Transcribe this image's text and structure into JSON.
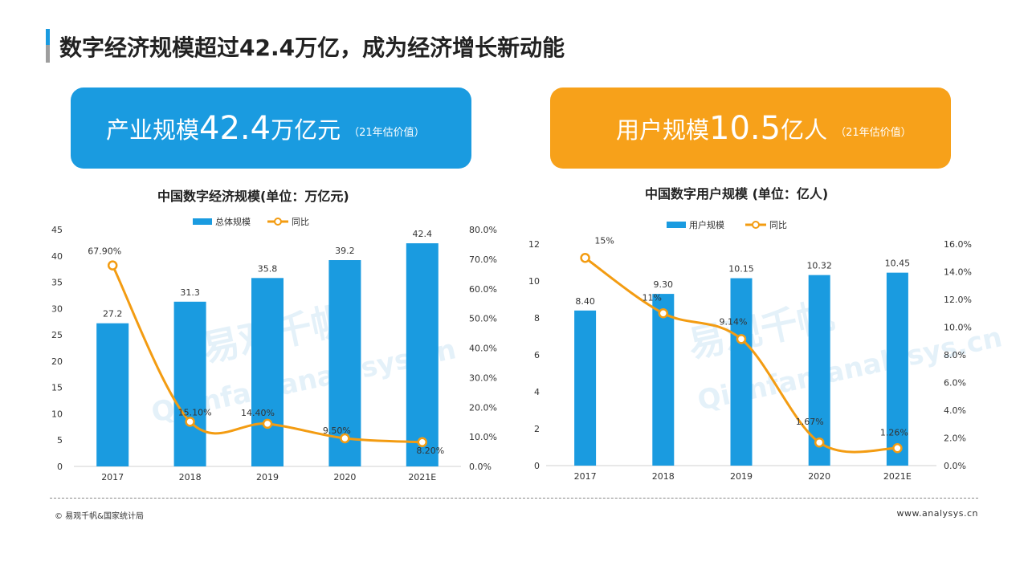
{
  "page": {
    "title": "数字经济规模超过42.4万亿，成为经济增长新动能"
  },
  "banner_left": {
    "label": "产业规模",
    "value": "42.4",
    "unit": "万亿元",
    "note": "（21年估价值）",
    "color": "#1a9be0"
  },
  "banner_right": {
    "label": "用户规模",
    "value": "10.5",
    "unit": "亿人",
    "note": "（21年估价值）",
    "color": "#f7a11a"
  },
  "footer": {
    "source": "© 易观千帆&国家统计局",
    "site": "www.analysys.cn"
  },
  "watermark": {
    "cn": "易观千帆",
    "en": "Qianfan.analysys.cn"
  },
  "chart_data": [
    {
      "type": "bar+line",
      "title": "中国数字经济规模(单位：万亿元)",
      "categories": [
        "2017",
        "2018",
        "2019",
        "2020",
        "2021E"
      ],
      "series": [
        {
          "name": "总体规模",
          "type": "bar",
          "axis": "left",
          "values": [
            27.2,
            31.3,
            35.8,
            39.2,
            42.4
          ],
          "labels": [
            "27.2",
            "31.3",
            "35.8",
            "39.2",
            "42.4"
          ],
          "color": "#1a9be0"
        },
        {
          "name": "同比",
          "type": "line",
          "axis": "right",
          "values": [
            67.9,
            15.1,
            14.4,
            9.5,
            8.2
          ],
          "labels": [
            "67.90%",
            "15.10%",
            "14.40%",
            "9.50%",
            "8.20%"
          ],
          "color": "#f39c12"
        }
      ],
      "y_left": {
        "min": 0,
        "max": 45,
        "ticks": [
          "0",
          "5",
          "10",
          "15",
          "20",
          "25",
          "30",
          "35",
          "40",
          "45"
        ]
      },
      "y_right": {
        "min": 0,
        "max": 80,
        "ticks": [
          "0.0%",
          "10.0%",
          "20.0%",
          "30.0%",
          "40.0%",
          "50.0%",
          "60.0%",
          "70.0%",
          "80.0%"
        ]
      },
      "legend": "top-center"
    },
    {
      "type": "bar+line",
      "title": "中国数字用户规模 (单位：亿人)",
      "categories": [
        "2017",
        "2018",
        "2019",
        "2020",
        "2021E"
      ],
      "series": [
        {
          "name": "用户规模",
          "type": "bar",
          "axis": "left",
          "values": [
            8.4,
            9.3,
            10.15,
            10.32,
            10.45
          ],
          "labels": [
            "8.40",
            "9.30",
            "10.15",
            "10.32",
            "10.45"
          ],
          "color": "#1a9be0"
        },
        {
          "name": "同比",
          "type": "line",
          "axis": "right",
          "values": [
            15,
            11,
            9.14,
            1.67,
            1.26
          ],
          "labels": [
            "15%",
            "11%",
            "9.14%",
            "1.67%",
            "1.26%"
          ],
          "color": "#f39c12"
        }
      ],
      "y_left": {
        "min": 0,
        "max": 12,
        "ticks": [
          "0",
          "2",
          "4",
          "6",
          "8",
          "10",
          "12"
        ]
      },
      "y_right": {
        "min": 0,
        "max": 16,
        "ticks": [
          "0.0%",
          "2.0%",
          "4.0%",
          "6.0%",
          "8.0%",
          "10.0%",
          "12.0%",
          "14.0%",
          "16.0%"
        ]
      },
      "legend": "top-center"
    }
  ]
}
